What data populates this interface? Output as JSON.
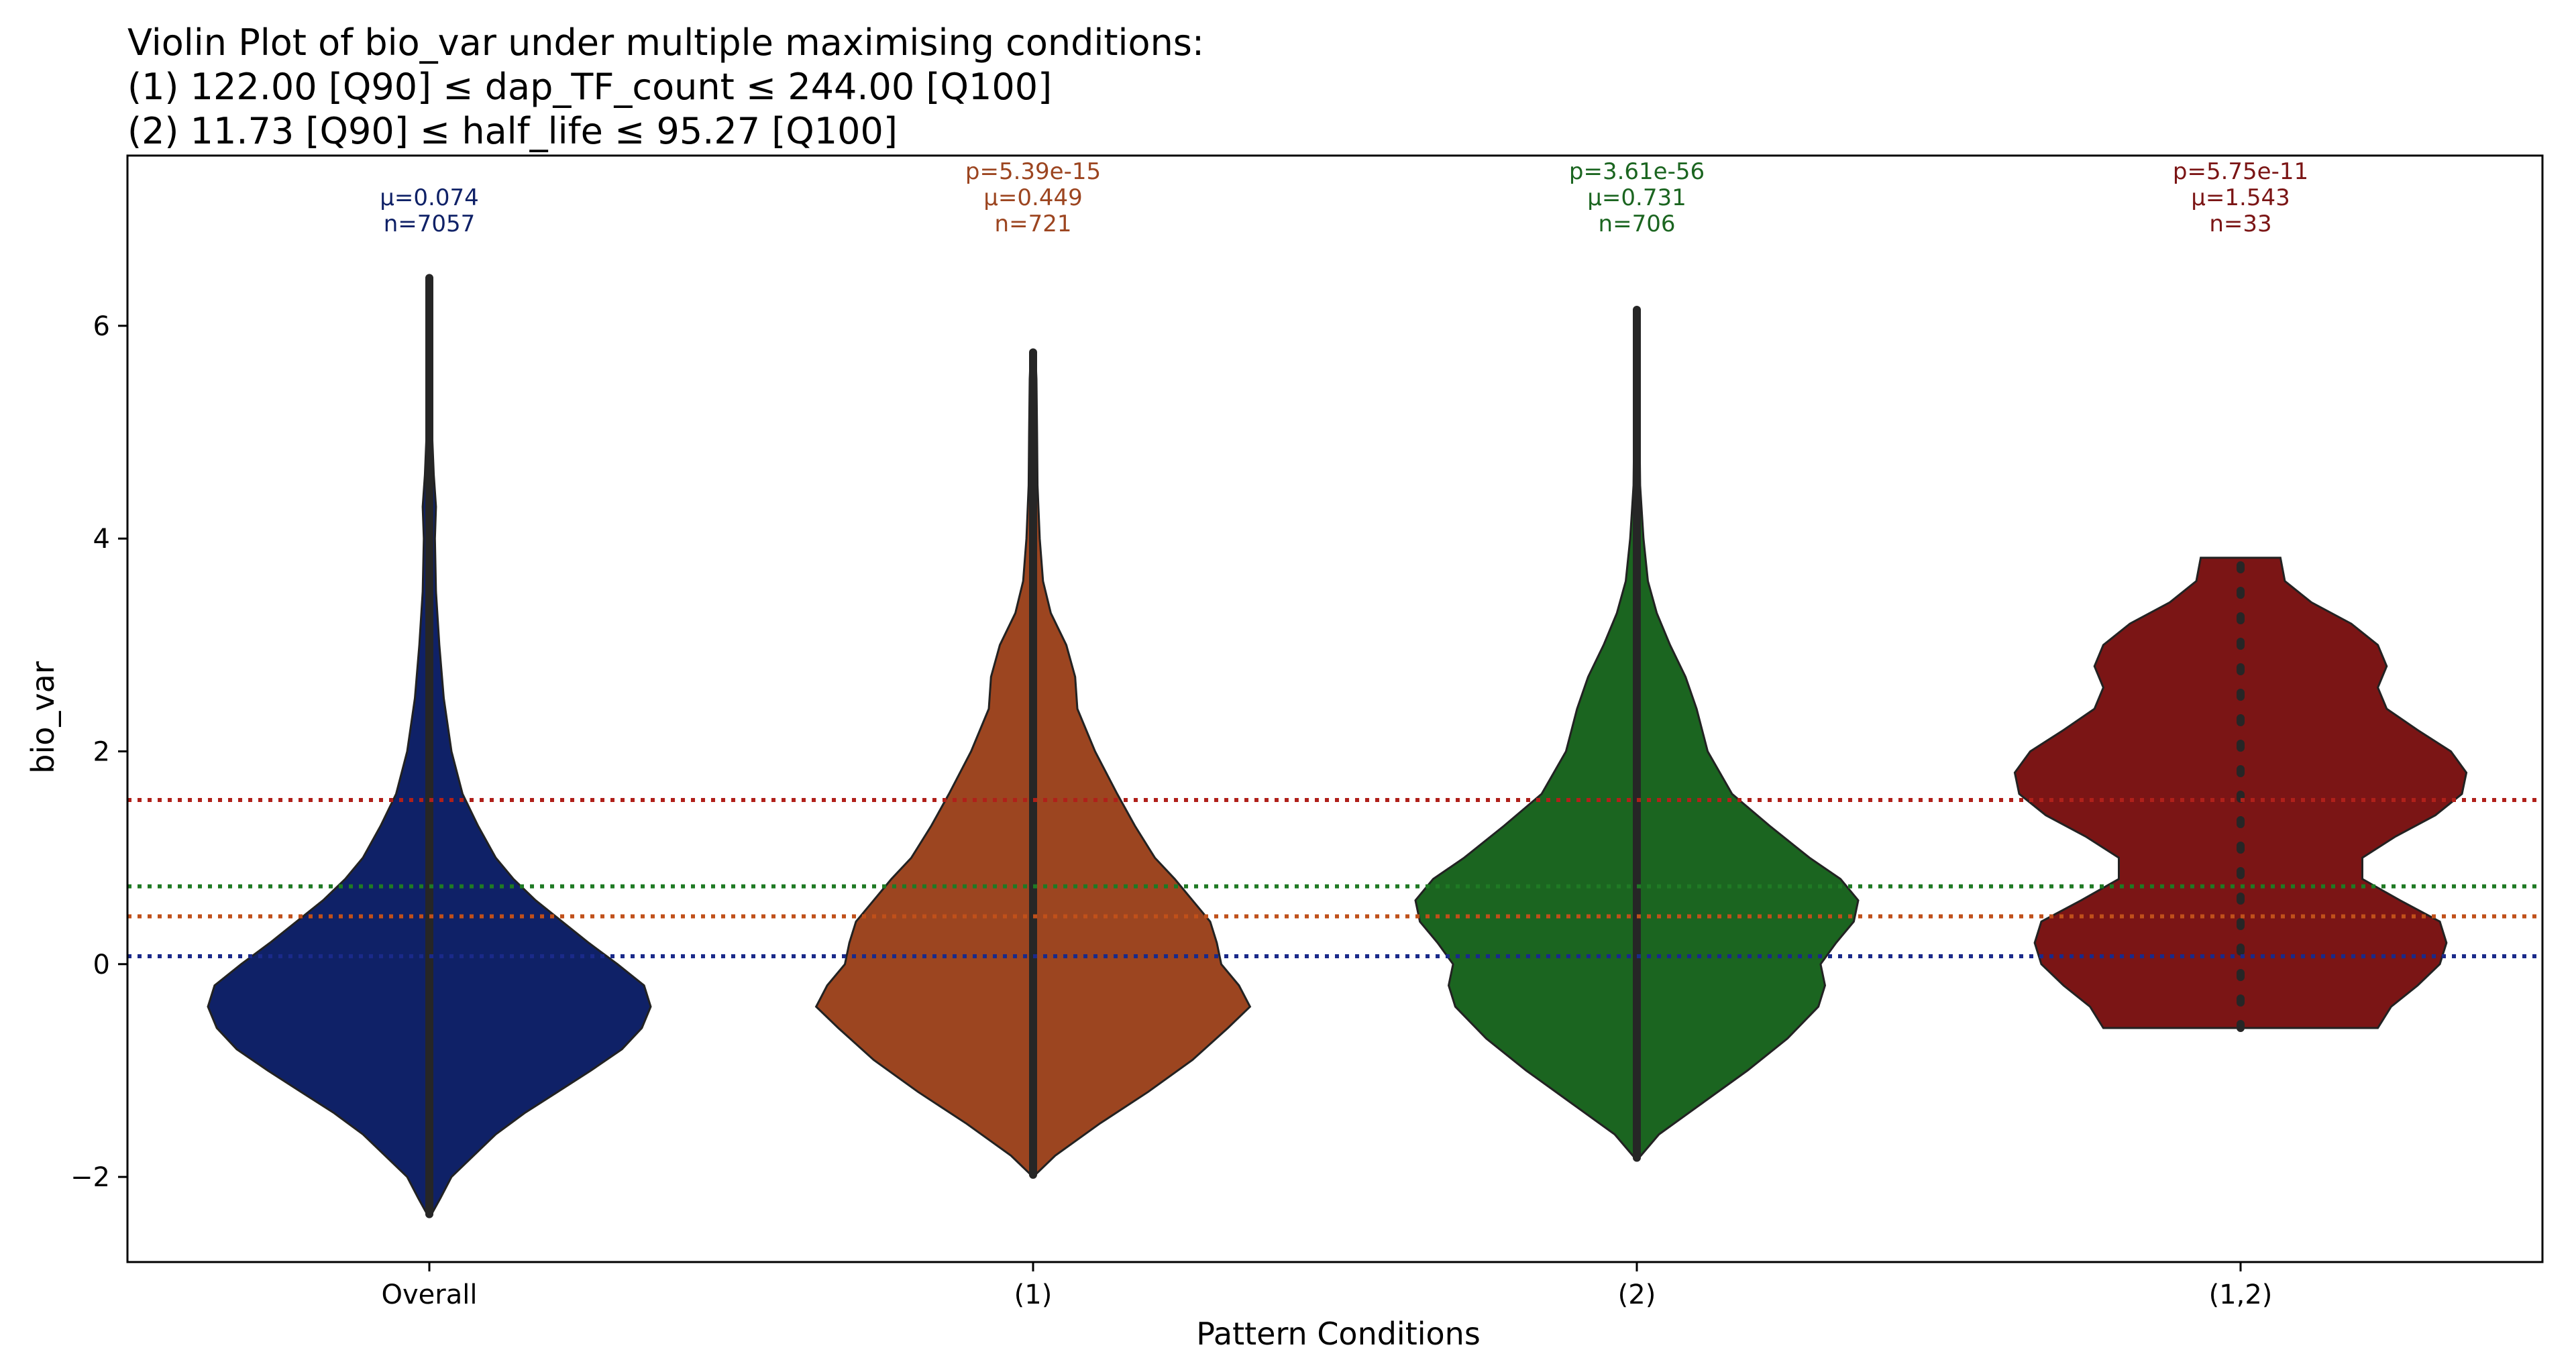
{
  "title_lines": [
    "Violin Plot of bio_var under multiple maximising conditions:",
    "(1) 122.00 [Q90] ≤ dap_TF_count ≤ 244.00 [Q100]",
    "(2) 11.73 [Q90] ≤ half_life ≤ 95.27 [Q100]"
  ],
  "chart_data": {
    "type": "violin",
    "xlabel": "Pattern Conditions",
    "ylabel": "bio_var",
    "ylim": [
      -2.8,
      7.6
    ],
    "yticks": [
      {
        "value": -2,
        "label": "−2"
      },
      {
        "value": 0,
        "label": "0"
      },
      {
        "value": 2,
        "label": "2"
      },
      {
        "value": 4,
        "label": "4"
      },
      {
        "value": 6,
        "label": "6"
      }
    ],
    "categories": [
      "Overall",
      "(1)",
      "(2)",
      "(1,2)"
    ],
    "series": [
      {
        "category": "Overall",
        "color": "#0f2167",
        "mean": 0.074,
        "n": 7057,
        "mean_label": "μ=0.074",
        "n_label": "n=7057",
        "p_label": "",
        "min": -2.35,
        "max": 6.45,
        "density": [
          [
            -2.35,
            0.01
          ],
          [
            -2.2,
            0.05
          ],
          [
            -2.0,
            0.1
          ],
          [
            -1.8,
            0.2
          ],
          [
            -1.6,
            0.3
          ],
          [
            -1.4,
            0.43
          ],
          [
            -1.2,
            0.58
          ],
          [
            -1.0,
            0.73
          ],
          [
            -0.8,
            0.87
          ],
          [
            -0.6,
            0.96
          ],
          [
            -0.4,
            1.0
          ],
          [
            -0.2,
            0.97
          ],
          [
            0.0,
            0.85
          ],
          [
            0.2,
            0.72
          ],
          [
            0.4,
            0.6
          ],
          [
            0.6,
            0.48
          ],
          [
            0.8,
            0.38
          ],
          [
            1.0,
            0.3
          ],
          [
            1.3,
            0.22
          ],
          [
            1.6,
            0.15
          ],
          [
            2.0,
            0.1
          ],
          [
            2.5,
            0.065
          ],
          [
            3.0,
            0.045
          ],
          [
            3.5,
            0.03
          ],
          [
            4.0,
            0.025
          ],
          [
            4.3,
            0.03
          ],
          [
            4.6,
            0.02
          ],
          [
            5.0,
            0.012
          ],
          [
            5.5,
            0.008
          ],
          [
            6.0,
            0.005
          ],
          [
            6.45,
            0.003
          ]
        ]
      },
      {
        "category": "(1)",
        "color": "#9c4520",
        "mean": 0.449,
        "n": 721,
        "mean_label": "μ=0.449",
        "n_label": "n=721",
        "p_label": "p=5.39e-15",
        "min": -1.98,
        "max": 5.75,
        "density": [
          [
            -1.98,
            0.01
          ],
          [
            -1.8,
            0.1
          ],
          [
            -1.5,
            0.3
          ],
          [
            -1.2,
            0.52
          ],
          [
            -0.9,
            0.72
          ],
          [
            -0.6,
            0.88
          ],
          [
            -0.4,
            0.98
          ],
          [
            -0.2,
            0.93
          ],
          [
            0.0,
            0.85
          ],
          [
            0.2,
            0.83
          ],
          [
            0.4,
            0.8
          ],
          [
            0.6,
            0.72
          ],
          [
            0.8,
            0.64
          ],
          [
            1.0,
            0.55
          ],
          [
            1.3,
            0.46
          ],
          [
            1.6,
            0.38
          ],
          [
            2.0,
            0.28
          ],
          [
            2.4,
            0.2
          ],
          [
            2.7,
            0.19
          ],
          [
            3.0,
            0.15
          ],
          [
            3.3,
            0.08
          ],
          [
            3.6,
            0.045
          ],
          [
            4.0,
            0.03
          ],
          [
            4.5,
            0.02
          ],
          [
            5.0,
            0.018
          ],
          [
            5.5,
            0.015
          ],
          [
            5.75,
            0.01
          ]
        ]
      },
      {
        "category": "(2)",
        "color": "#1b6520",
        "mean": 0.731,
        "n": 706,
        "mean_label": "μ=0.731",
        "n_label": "n=706",
        "p_label": "p=3.61e-56",
        "min": -1.82,
        "max": 6.15,
        "density": [
          [
            -1.82,
            0.01
          ],
          [
            -1.6,
            0.1
          ],
          [
            -1.3,
            0.3
          ],
          [
            -1.0,
            0.5
          ],
          [
            -0.7,
            0.68
          ],
          [
            -0.4,
            0.82
          ],
          [
            -0.2,
            0.85
          ],
          [
            0.0,
            0.83
          ],
          [
            0.2,
            0.9
          ],
          [
            0.4,
            0.98
          ],
          [
            0.6,
            1.0
          ],
          [
            0.8,
            0.92
          ],
          [
            1.0,
            0.78
          ],
          [
            1.3,
            0.6
          ],
          [
            1.6,
            0.43
          ],
          [
            2.0,
            0.32
          ],
          [
            2.4,
            0.27
          ],
          [
            2.7,
            0.22
          ],
          [
            3.0,
            0.15
          ],
          [
            3.3,
            0.09
          ],
          [
            3.6,
            0.05
          ],
          [
            4.0,
            0.03
          ],
          [
            4.5,
            0.015
          ],
          [
            5.0,
            0.012
          ],
          [
            5.5,
            0.01
          ],
          [
            6.0,
            0.007
          ],
          [
            6.15,
            0.003
          ]
        ]
      },
      {
        "category": "(1,2)",
        "color": "#7b1515",
        "mean": 1.543,
        "n": 33,
        "mean_label": "μ=1.543",
        "n_label": "n=33",
        "p_label": "p=5.75e-11",
        "min": -0.6,
        "max": 3.82,
        "density": [
          [
            -0.6,
            0.62
          ],
          [
            -0.4,
            0.68
          ],
          [
            -0.2,
            0.8
          ],
          [
            0.0,
            0.9
          ],
          [
            0.2,
            0.93
          ],
          [
            0.4,
            0.9
          ],
          [
            0.6,
            0.72
          ],
          [
            0.8,
            0.55
          ],
          [
            1.0,
            0.55
          ],
          [
            1.2,
            0.7
          ],
          [
            1.4,
            0.88
          ],
          [
            1.6,
            1.0
          ],
          [
            1.8,
            1.02
          ],
          [
            2.0,
            0.95
          ],
          [
            2.2,
            0.8
          ],
          [
            2.4,
            0.66
          ],
          [
            2.6,
            0.62
          ],
          [
            2.8,
            0.66
          ],
          [
            3.0,
            0.62
          ],
          [
            3.2,
            0.5
          ],
          [
            3.4,
            0.32
          ],
          [
            3.6,
            0.2
          ],
          [
            3.82,
            0.18
          ]
        ]
      }
    ],
    "mean_lines": [
      {
        "value": 1.543,
        "color": "#b0201a"
      },
      {
        "value": 0.731,
        "color": "#1f7a24"
      },
      {
        "value": 0.449,
        "color": "#c0501a"
      },
      {
        "value": 0.074,
        "color": "#1a2a8a"
      }
    ],
    "grid": false,
    "legend": "none"
  }
}
